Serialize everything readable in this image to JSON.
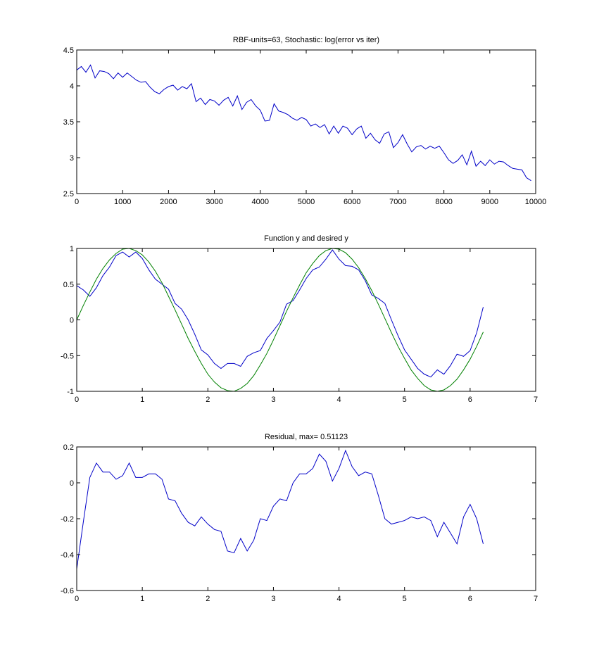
{
  "chart_data": [
    {
      "type": "line",
      "title": "RBF-units=63, Stochastic: log(error vs iter)",
      "xlabel": "",
      "ylabel": "",
      "xlim": [
        0,
        10000
      ],
      "ylim": [
        2.5,
        4.5
      ],
      "x_ticks": [
        "0",
        "1000",
        "2000",
        "3000",
        "4000",
        "5000",
        "6000",
        "7000",
        "8000",
        "9000",
        "10000"
      ],
      "y_ticks": [
        "2.5",
        "3",
        "3.5",
        "4",
        "4.5"
      ],
      "x_tick_values": [
        0,
        1000,
        2000,
        3000,
        4000,
        5000,
        6000,
        7000,
        8000,
        9000,
        10000
      ],
      "y_tick_values": [
        2.5,
        3,
        3.5,
        4,
        4.5
      ],
      "series": [
        {
          "color": "#0000c8",
          "x": [
            0,
            100,
            200,
            300,
            400,
            500,
            600,
            700,
            800,
            900,
            1000,
            1100,
            1200,
            1300,
            1400,
            1500,
            1600,
            1700,
            1800,
            1900,
            2000,
            2100,
            2200,
            2300,
            2400,
            2500,
            2600,
            2700,
            2800,
            2900,
            3000,
            3100,
            3200,
            3300,
            3400,
            3500,
            3600,
            3700,
            3800,
            3900,
            4000,
            4100,
            4200,
            4300,
            4400,
            4500,
            4600,
            4700,
            4800,
            4900,
            5000,
            5100,
            5200,
            5300,
            5400,
            5500,
            5600,
            5700,
            5800,
            5900,
            6000,
            6100,
            6200,
            6300,
            6400,
            6500,
            6600,
            6700,
            6800,
            6900,
            7000,
            7100,
            7200,
            7300,
            7400,
            7500,
            7600,
            7700,
            7800,
            7900,
            8000,
            8100,
            8200,
            8300,
            8400,
            8500,
            8600,
            8700,
            8800,
            8900,
            9000,
            9100,
            9200,
            9300,
            9400,
            9500,
            9600,
            9700,
            9800,
            9900
          ],
          "values": [
            4.22,
            4.27,
            4.19,
            4.29,
            4.11,
            4.21,
            4.2,
            4.17,
            4.1,
            4.18,
            4.12,
            4.18,
            4.13,
            4.08,
            4.05,
            4.06,
            3.98,
            3.92,
            3.89,
            3.95,
            3.99,
            4.01,
            3.94,
            3.99,
            3.96,
            4.03,
            3.78,
            3.83,
            3.74,
            3.81,
            3.79,
            3.73,
            3.8,
            3.84,
            3.72,
            3.86,
            3.67,
            3.77,
            3.81,
            3.72,
            3.66,
            3.51,
            3.52,
            3.75,
            3.65,
            3.63,
            3.6,
            3.55,
            3.52,
            3.56,
            3.53,
            3.44,
            3.47,
            3.42,
            3.46,
            3.33,
            3.44,
            3.34,
            3.44,
            3.41,
            3.32,
            3.4,
            3.44,
            3.27,
            3.34,
            3.25,
            3.2,
            3.33,
            3.36,
            3.14,
            3.21,
            3.32,
            3.19,
            3.08,
            3.15,
            3.17,
            3.12,
            3.16,
            3.13,
            3.16,
            3.07,
            2.97,
            2.92,
            2.96,
            3.04,
            2.9,
            3.09,
            2.88,
            2.95,
            2.89,
            2.97,
            2.91,
            2.95,
            2.94,
            2.89,
            2.85,
            2.84,
            2.83,
            2.72,
            2.68
          ]
        }
      ]
    },
    {
      "type": "line",
      "title": "Function y and desired y",
      "xlabel": "",
      "ylabel": "",
      "xlim": [
        0,
        7
      ],
      "ylim": [
        -1,
        1
      ],
      "x_ticks": [
        "0",
        "1",
        "2",
        "3",
        "4",
        "5",
        "6",
        "7"
      ],
      "y_ticks": [
        "-1",
        "-0.5",
        "0",
        "0.5",
        "1"
      ],
      "x_tick_values": [
        0,
        1,
        2,
        3,
        4,
        5,
        6,
        7
      ],
      "y_tick_values": [
        -1,
        -0.5,
        0,
        0.5,
        1
      ],
      "series": [
        {
          "color": "#0000c8",
          "x": [
            0,
            0.1,
            0.2,
            0.3,
            0.4,
            0.5,
            0.6,
            0.7,
            0.8,
            0.9,
            1.0,
            1.1,
            1.2,
            1.3,
            1.4,
            1.5,
            1.6,
            1.7,
            1.8,
            1.9,
            2.0,
            2.1,
            2.2,
            2.3,
            2.4,
            2.5,
            2.6,
            2.7,
            2.8,
            2.9,
            3.0,
            3.1,
            3.2,
            3.3,
            3.4,
            3.5,
            3.6,
            3.7,
            3.8,
            3.9,
            4.0,
            4.1,
            4.2,
            4.3,
            4.4,
            4.5,
            4.6,
            4.7,
            4.8,
            4.9,
            5.0,
            5.1,
            5.2,
            5.3,
            5.4,
            5.5,
            5.6,
            5.7,
            5.8,
            5.9,
            6.0,
            6.1,
            6.2
          ],
          "values": [
            0.48,
            0.42,
            0.33,
            0.45,
            0.62,
            0.74,
            0.9,
            0.95,
            0.88,
            0.95,
            0.86,
            0.7,
            0.57,
            0.5,
            0.43,
            0.23,
            0.15,
            0.0,
            -0.2,
            -0.42,
            -0.49,
            -0.61,
            -0.68,
            -0.61,
            -0.61,
            -0.65,
            -0.51,
            -0.46,
            -0.43,
            -0.26,
            -0.15,
            -0.03,
            0.22,
            0.27,
            0.42,
            0.58,
            0.7,
            0.74,
            0.85,
            0.98,
            0.85,
            0.76,
            0.75,
            0.7,
            0.55,
            0.35,
            0.3,
            0.23,
            0.0,
            -0.22,
            -0.42,
            -0.55,
            -0.68,
            -0.76,
            -0.8,
            -0.7,
            -0.76,
            -0.64,
            -0.48,
            -0.51,
            -0.43,
            -0.18,
            0.18
          ]
        },
        {
          "color": "#008000",
          "x": [
            0,
            0.1,
            0.2,
            0.3,
            0.4,
            0.5,
            0.6,
            0.7,
            0.8,
            0.9,
            1.0,
            1.1,
            1.2,
            1.3,
            1.4,
            1.5,
            1.6,
            1.7,
            1.8,
            1.9,
            2.0,
            2.1,
            2.2,
            2.3,
            2.4,
            2.5,
            2.6,
            2.7,
            2.8,
            2.9,
            3.0,
            3.1,
            3.2,
            3.3,
            3.4,
            3.5,
            3.6,
            3.7,
            3.8,
            3.9,
            4.0,
            4.1,
            4.2,
            4.3,
            4.4,
            4.5,
            4.6,
            4.7,
            4.8,
            4.9,
            5.0,
            5.1,
            5.2,
            5.3,
            5.4,
            5.5,
            5.6,
            5.7,
            5.8,
            5.9,
            6.0,
            6.1,
            6.2
          ],
          "values": [
            0.0,
            0.2,
            0.39,
            0.57,
            0.72,
            0.84,
            0.93,
            0.99,
            1.0,
            0.97,
            0.91,
            0.81,
            0.68,
            0.52,
            0.33,
            0.14,
            -0.06,
            -0.26,
            -0.44,
            -0.61,
            -0.76,
            -0.87,
            -0.95,
            -0.99,
            -1.0,
            -0.96,
            -0.89,
            -0.78,
            -0.63,
            -0.47,
            -0.28,
            -0.08,
            0.12,
            0.31,
            0.49,
            0.66,
            0.79,
            0.9,
            0.97,
            1.0,
            0.99,
            0.94,
            0.85,
            0.73,
            0.58,
            0.41,
            0.22,
            0.02,
            -0.18,
            -0.37,
            -0.54,
            -0.7,
            -0.82,
            -0.92,
            -0.98,
            -1.0,
            -0.98,
            -0.92,
            -0.83,
            -0.7,
            -0.55,
            -0.37,
            -0.17
          ]
        }
      ]
    },
    {
      "type": "line",
      "title": "Residual, max= 0.51123",
      "xlabel": "",
      "ylabel": "",
      "xlim": [
        0,
        7
      ],
      "ylim": [
        -0.6,
        0.2
      ],
      "x_ticks": [
        "0",
        "1",
        "2",
        "3",
        "4",
        "5",
        "6",
        "7"
      ],
      "y_ticks": [
        "-0.6",
        "-0.4",
        "-0.2",
        "0",
        "0.2"
      ],
      "x_tick_values": [
        0,
        1,
        2,
        3,
        4,
        5,
        6,
        7
      ],
      "y_tick_values": [
        -0.6,
        -0.4,
        -0.2,
        0,
        0.2
      ],
      "series": [
        {
          "color": "#0000c8",
          "x": [
            0,
            0.1,
            0.2,
            0.3,
            0.4,
            0.5,
            0.6,
            0.7,
            0.8,
            0.9,
            1.0,
            1.1,
            1.2,
            1.3,
            1.4,
            1.5,
            1.6,
            1.7,
            1.8,
            1.9,
            2.0,
            2.1,
            2.2,
            2.3,
            2.4,
            2.5,
            2.6,
            2.7,
            2.8,
            2.9,
            3.0,
            3.1,
            3.2,
            3.3,
            3.4,
            3.5,
            3.6,
            3.7,
            3.8,
            3.9,
            4.0,
            4.1,
            4.2,
            4.3,
            4.4,
            4.5,
            4.6,
            4.7,
            4.8,
            4.9,
            5.0,
            5.1,
            5.2,
            5.3,
            5.4,
            5.5,
            5.6,
            5.7,
            5.8,
            5.9,
            6.0,
            6.1,
            6.2
          ],
          "values": [
            -0.48,
            -0.22,
            0.03,
            0.11,
            0.06,
            0.06,
            0.02,
            0.04,
            0.11,
            0.03,
            0.03,
            0.05,
            0.05,
            0.02,
            -0.09,
            -0.1,
            -0.17,
            -0.22,
            -0.24,
            -0.19,
            -0.23,
            -0.26,
            -0.27,
            -0.38,
            -0.39,
            -0.31,
            -0.38,
            -0.32,
            -0.2,
            -0.21,
            -0.13,
            -0.09,
            -0.1,
            0.0,
            0.05,
            0.05,
            0.08,
            0.16,
            0.12,
            0.01,
            0.08,
            0.18,
            0.09,
            0.04,
            0.06,
            0.05,
            -0.07,
            -0.2,
            -0.23,
            -0.22,
            -0.21,
            -0.19,
            -0.2,
            -0.19,
            -0.21,
            -0.3,
            -0.22,
            -0.28,
            -0.34,
            -0.19,
            -0.12,
            -0.2,
            -0.34
          ]
        }
      ]
    }
  ]
}
